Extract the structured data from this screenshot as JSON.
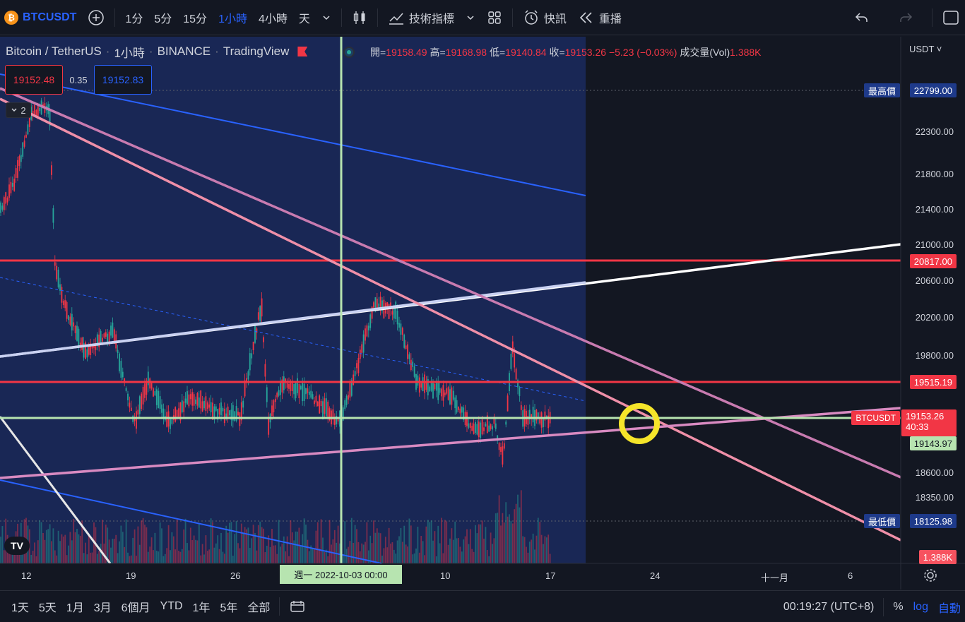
{
  "toolbar": {
    "symbol": "BTCUSDT",
    "symbol_badge": "₿",
    "intervals": [
      "1分",
      "5分",
      "15分",
      "1小時",
      "4小時",
      "天"
    ],
    "active_interval": "1小時",
    "indicators_label": "技術指標",
    "alert_label": "快訊",
    "replay_label": "重播",
    "icons": [
      "add-icon",
      "chevron-down-icon",
      "candles-icon",
      "indicators-icon",
      "layout-icon",
      "alert-icon",
      "replay-icon",
      "undo-icon",
      "redo-icon",
      "fullscreen-icon"
    ]
  },
  "legend": {
    "name": "Bitcoin / TetherUS",
    "interval": "1小時",
    "exchange": "BINANCE",
    "source": "TradingView",
    "open_label": "開=",
    "open": "19158.49",
    "high_label": "高=",
    "high": "19168.98",
    "low_label": "低=",
    "low": "19140.84",
    "close_label": "收=",
    "close": "19153.26",
    "change": "−5.23 (−0.03%)",
    "volume_label": "成交量(Vol)",
    "volume": "1.388K"
  },
  "quote": {
    "sell": "19152.48",
    "spread": "0.35",
    "buy": "19152.83",
    "collapsed_count": "2"
  },
  "price_axis": {
    "currency": "USDT",
    "ticks": [
      "22300.00",
      "21800.00",
      "21400.00",
      "21000.00",
      "20600.00",
      "20200.00",
      "19800.00",
      "18600.00",
      "18350.00"
    ],
    "high_label": "最高價",
    "high_value": "22799.00",
    "level_1": "20817.00",
    "level_2": "19515.19",
    "symbol_label": "BTCUSDT",
    "last_price": "19153.26",
    "countdown": "40:33",
    "green_level": "19143.97",
    "low_label": "最低價",
    "low_value": "18125.98",
    "volume_badge": "1.388K"
  },
  "time_axis": {
    "ticks": [
      "12",
      "19",
      "26",
      "10",
      "17",
      "24",
      "十一月",
      "6"
    ],
    "crosshair": "週一 2022-10-03   00:00"
  },
  "bottom": {
    "ranges": [
      "1天",
      "5天",
      "1月",
      "3月",
      "6個月",
      "YTD",
      "1年",
      "5年",
      "全部"
    ],
    "clock": "00:19:27 (UTC+8)",
    "percent": "%",
    "log": "log",
    "auto": "自動"
  },
  "colors": {
    "background": "#131722",
    "accent": "#2962ff",
    "red": "#f23645",
    "green": "#26a69a",
    "crosshair": "#b7e4b0",
    "highlight_circle": "#f5e52a"
  }
}
